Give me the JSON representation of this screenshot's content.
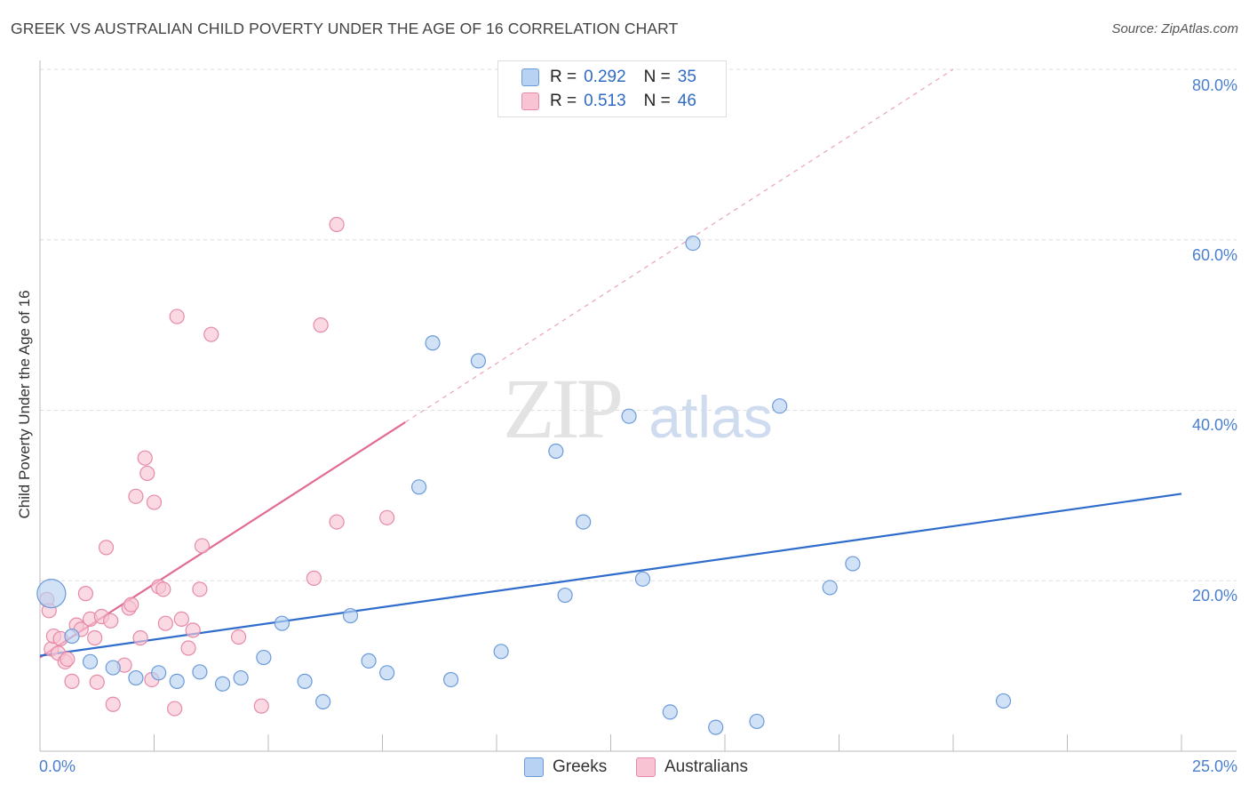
{
  "header": {
    "title": "GREEK VS AUSTRALIAN CHILD POVERTY UNDER THE AGE OF 16 CORRELATION CHART",
    "source": "Source: ZipAtlas.com"
  },
  "watermark": {
    "zip": "ZIP",
    "atlas": "atlas"
  },
  "legend": {
    "greeks": {
      "r_label": "R =",
      "r_value": "0.292",
      "n_label": "N =",
      "n_value": "35"
    },
    "australians": {
      "r_label": "R =",
      "r_value": "0.513",
      "n_label": "N =",
      "n_value": "46"
    }
  },
  "bottom_legend": {
    "greeks": "Greeks",
    "australians": "Australians"
  },
  "colors": {
    "greeks_fill": "#b8d2f3",
    "greeks_stroke": "#6b9ad9",
    "greeks_line": "#2f6ccc",
    "australians_fill": "#f8c4d4",
    "australians_stroke": "#e68aa8",
    "australians_line": "#e26b93",
    "axis_text": "#4a7fd0"
  },
  "chart_data": {
    "type": "scatter",
    "title": "GREEK VS AUSTRALIAN CHILD POVERTY UNDER THE AGE OF 16 CORRELATION CHART",
    "xlabel": "",
    "ylabel": "Child Poverty Under the Age of 16",
    "xlim": [
      0,
      25
    ],
    "ylim": [
      0,
      80
    ],
    "x_tick_labels": [
      "0.0%",
      "25.0%"
    ],
    "y_ticks": [
      20,
      40,
      60,
      80
    ],
    "y_tick_labels": [
      "20.0%",
      "40.0%",
      "60.0%",
      "80.0%"
    ],
    "grid": "horizontal dashed",
    "legend_placement": "top-center",
    "series": [
      {
        "name": "Greeks",
        "r": 0.292,
        "n": 35,
        "trend": {
          "x": [
            0,
            25
          ],
          "y": [
            11.2,
            30.2
          ]
        },
        "points": [
          {
            "x": 0.25,
            "y": 18.5,
            "big": true
          },
          {
            "x": 0.7,
            "y": 13.5
          },
          {
            "x": 1.1,
            "y": 10.5
          },
          {
            "x": 1.6,
            "y": 9.8
          },
          {
            "x": 2.1,
            "y": 8.6
          },
          {
            "x": 2.6,
            "y": 9.2
          },
          {
            "x": 3.0,
            "y": 8.2
          },
          {
            "x": 3.5,
            "y": 9.3
          },
          {
            "x": 4.0,
            "y": 7.9
          },
          {
            "x": 4.4,
            "y": 8.6
          },
          {
            "x": 4.9,
            "y": 11.0
          },
          {
            "x": 5.3,
            "y": 15.0
          },
          {
            "x": 5.8,
            "y": 8.2
          },
          {
            "x": 6.2,
            "y": 5.8
          },
          {
            "x": 6.8,
            "y": 15.9
          },
          {
            "x": 7.2,
            "y": 10.6
          },
          {
            "x": 7.6,
            "y": 9.2
          },
          {
            "x": 8.3,
            "y": 31.0
          },
          {
            "x": 8.6,
            "y": 47.9
          },
          {
            "x": 9.0,
            "y": 8.4
          },
          {
            "x": 9.6,
            "y": 45.8
          },
          {
            "x": 10.1,
            "y": 11.7
          },
          {
            "x": 11.3,
            "y": 35.2
          },
          {
            "x": 11.5,
            "y": 18.3
          },
          {
            "x": 11.9,
            "y": 26.9
          },
          {
            "x": 12.9,
            "y": 39.3
          },
          {
            "x": 13.2,
            "y": 20.2
          },
          {
            "x": 13.8,
            "y": 4.6
          },
          {
            "x": 14.3,
            "y": 59.6
          },
          {
            "x": 14.8,
            "y": 2.8
          },
          {
            "x": 15.7,
            "y": 3.5
          },
          {
            "x": 16.2,
            "y": 40.5
          },
          {
            "x": 17.3,
            "y": 19.2
          },
          {
            "x": 17.8,
            "y": 22.0
          },
          {
            "x": 21.1,
            "y": 5.9
          }
        ]
      },
      {
        "name": "Australians",
        "r": 0.513,
        "n": 46,
        "trend": {
          "x": [
            0,
            8.0
          ],
          "y": [
            11.0,
            38.6
          ],
          "dashed_to": [
            20.0,
            80.0
          ]
        },
        "points": [
          {
            "x": 0.15,
            "y": 17.8
          },
          {
            "x": 0.25,
            "y": 12.0
          },
          {
            "x": 0.3,
            "y": 13.5
          },
          {
            "x": 0.4,
            "y": 11.5
          },
          {
            "x": 0.45,
            "y": 13.2
          },
          {
            "x": 0.55,
            "y": 10.5
          },
          {
            "x": 0.6,
            "y": 10.8
          },
          {
            "x": 0.7,
            "y": 8.2
          },
          {
            "x": 0.8,
            "y": 14.8
          },
          {
            "x": 0.9,
            "y": 14.3
          },
          {
            "x": 1.0,
            "y": 18.5
          },
          {
            "x": 1.1,
            "y": 15.5
          },
          {
            "x": 1.2,
            "y": 13.3
          },
          {
            "x": 1.25,
            "y": 8.1
          },
          {
            "x": 1.35,
            "y": 15.8
          },
          {
            "x": 1.45,
            "y": 23.9
          },
          {
            "x": 1.55,
            "y": 15.3
          },
          {
            "x": 1.6,
            "y": 5.5
          },
          {
            "x": 1.85,
            "y": 10.1
          },
          {
            "x": 1.95,
            "y": 16.8
          },
          {
            "x": 2.0,
            "y": 17.2
          },
          {
            "x": 2.1,
            "y": 29.9
          },
          {
            "x": 2.2,
            "y": 13.3
          },
          {
            "x": 2.3,
            "y": 34.4
          },
          {
            "x": 2.35,
            "y": 32.6
          },
          {
            "x": 2.45,
            "y": 8.4
          },
          {
            "x": 2.5,
            "y": 29.2
          },
          {
            "x": 2.6,
            "y": 19.3
          },
          {
            "x": 2.7,
            "y": 19.0
          },
          {
            "x": 2.75,
            "y": 15.0
          },
          {
            "x": 2.95,
            "y": 5.0
          },
          {
            "x": 3.0,
            "y": 51.0
          },
          {
            "x": 3.1,
            "y": 15.5
          },
          {
            "x": 3.25,
            "y": 12.1
          },
          {
            "x": 3.35,
            "y": 14.2
          },
          {
            "x": 3.5,
            "y": 19.0
          },
          {
            "x": 3.55,
            "y": 24.1
          },
          {
            "x": 3.75,
            "y": 48.9
          },
          {
            "x": 4.35,
            "y": 13.4
          },
          {
            "x": 4.85,
            "y": 5.3
          },
          {
            "x": 6.0,
            "y": 20.3
          },
          {
            "x": 6.15,
            "y": 50.0
          },
          {
            "x": 6.5,
            "y": 26.9
          },
          {
            "x": 6.5,
            "y": 61.8
          },
          {
            "x": 7.6,
            "y": 27.4
          },
          {
            "x": 0.2,
            "y": 16.5
          }
        ]
      }
    ]
  }
}
